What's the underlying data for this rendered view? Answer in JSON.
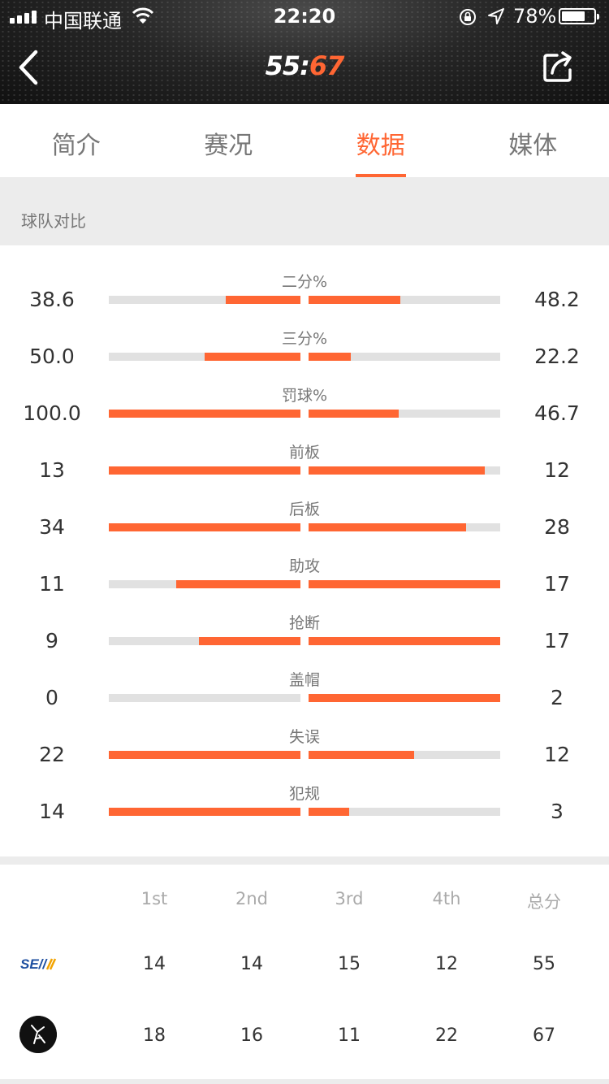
{
  "status_bar": {
    "carrier": "中国联通",
    "time": "22:20",
    "battery_pct": "78%",
    "battery_level": 0.78
  },
  "header": {
    "home_score": "55",
    "separator": ":",
    "away_score": "67",
    "icons": {
      "back": "chevron-left-icon",
      "share": "share-icon"
    }
  },
  "tabs": [
    {
      "label": "简介",
      "active": false
    },
    {
      "label": "赛况",
      "active": false
    },
    {
      "label": "数据",
      "active": true
    },
    {
      "label": "媒体",
      "active": false
    }
  ],
  "section_title": "球队对比",
  "colors": {
    "accent": "#ff6633",
    "track": "#e1e1e1",
    "section_bg": "#ececec"
  },
  "stats": [
    {
      "label": "二分%",
      "home": "38.6",
      "away": "48.2",
      "home_fill": 0.39,
      "away_fill": 0.48
    },
    {
      "label": "三分%",
      "home": "50.0",
      "away": "22.2",
      "home_fill": 0.5,
      "away_fill": 0.22
    },
    {
      "label": "罚球%",
      "home": "100.0",
      "away": "46.7",
      "home_fill": 1.0,
      "away_fill": 0.47
    },
    {
      "label": "前板",
      "home": "13",
      "away": "12",
      "home_fill": 1.0,
      "away_fill": 0.92
    },
    {
      "label": "后板",
      "home": "34",
      "away": "28",
      "home_fill": 1.0,
      "away_fill": 0.82
    },
    {
      "label": "助攻",
      "home": "11",
      "away": "17",
      "home_fill": 0.65,
      "away_fill": 1.0
    },
    {
      "label": "抢断",
      "home": "9",
      "away": "17",
      "home_fill": 0.53,
      "away_fill": 1.0
    },
    {
      "label": "盖帽",
      "home": "0",
      "away": "2",
      "home_fill": 0.0,
      "away_fill": 1.0
    },
    {
      "label": "失误",
      "home": "22",
      "away": "12",
      "home_fill": 1.0,
      "away_fill": 0.55
    },
    {
      "label": "犯规",
      "home": "14",
      "away": "3",
      "home_fill": 1.0,
      "away_fill": 0.21
    }
  ],
  "quarters": {
    "headers": [
      "1st",
      "2nd",
      "3rd",
      "4th",
      "总分"
    ],
    "teams": [
      {
        "logo": "SE//",
        "scores": [
          "14",
          "14",
          "15",
          "12",
          "55"
        ]
      },
      {
        "logo": "team-crest-icon",
        "scores": [
          "18",
          "16",
          "11",
          "22",
          "67"
        ]
      }
    ]
  }
}
